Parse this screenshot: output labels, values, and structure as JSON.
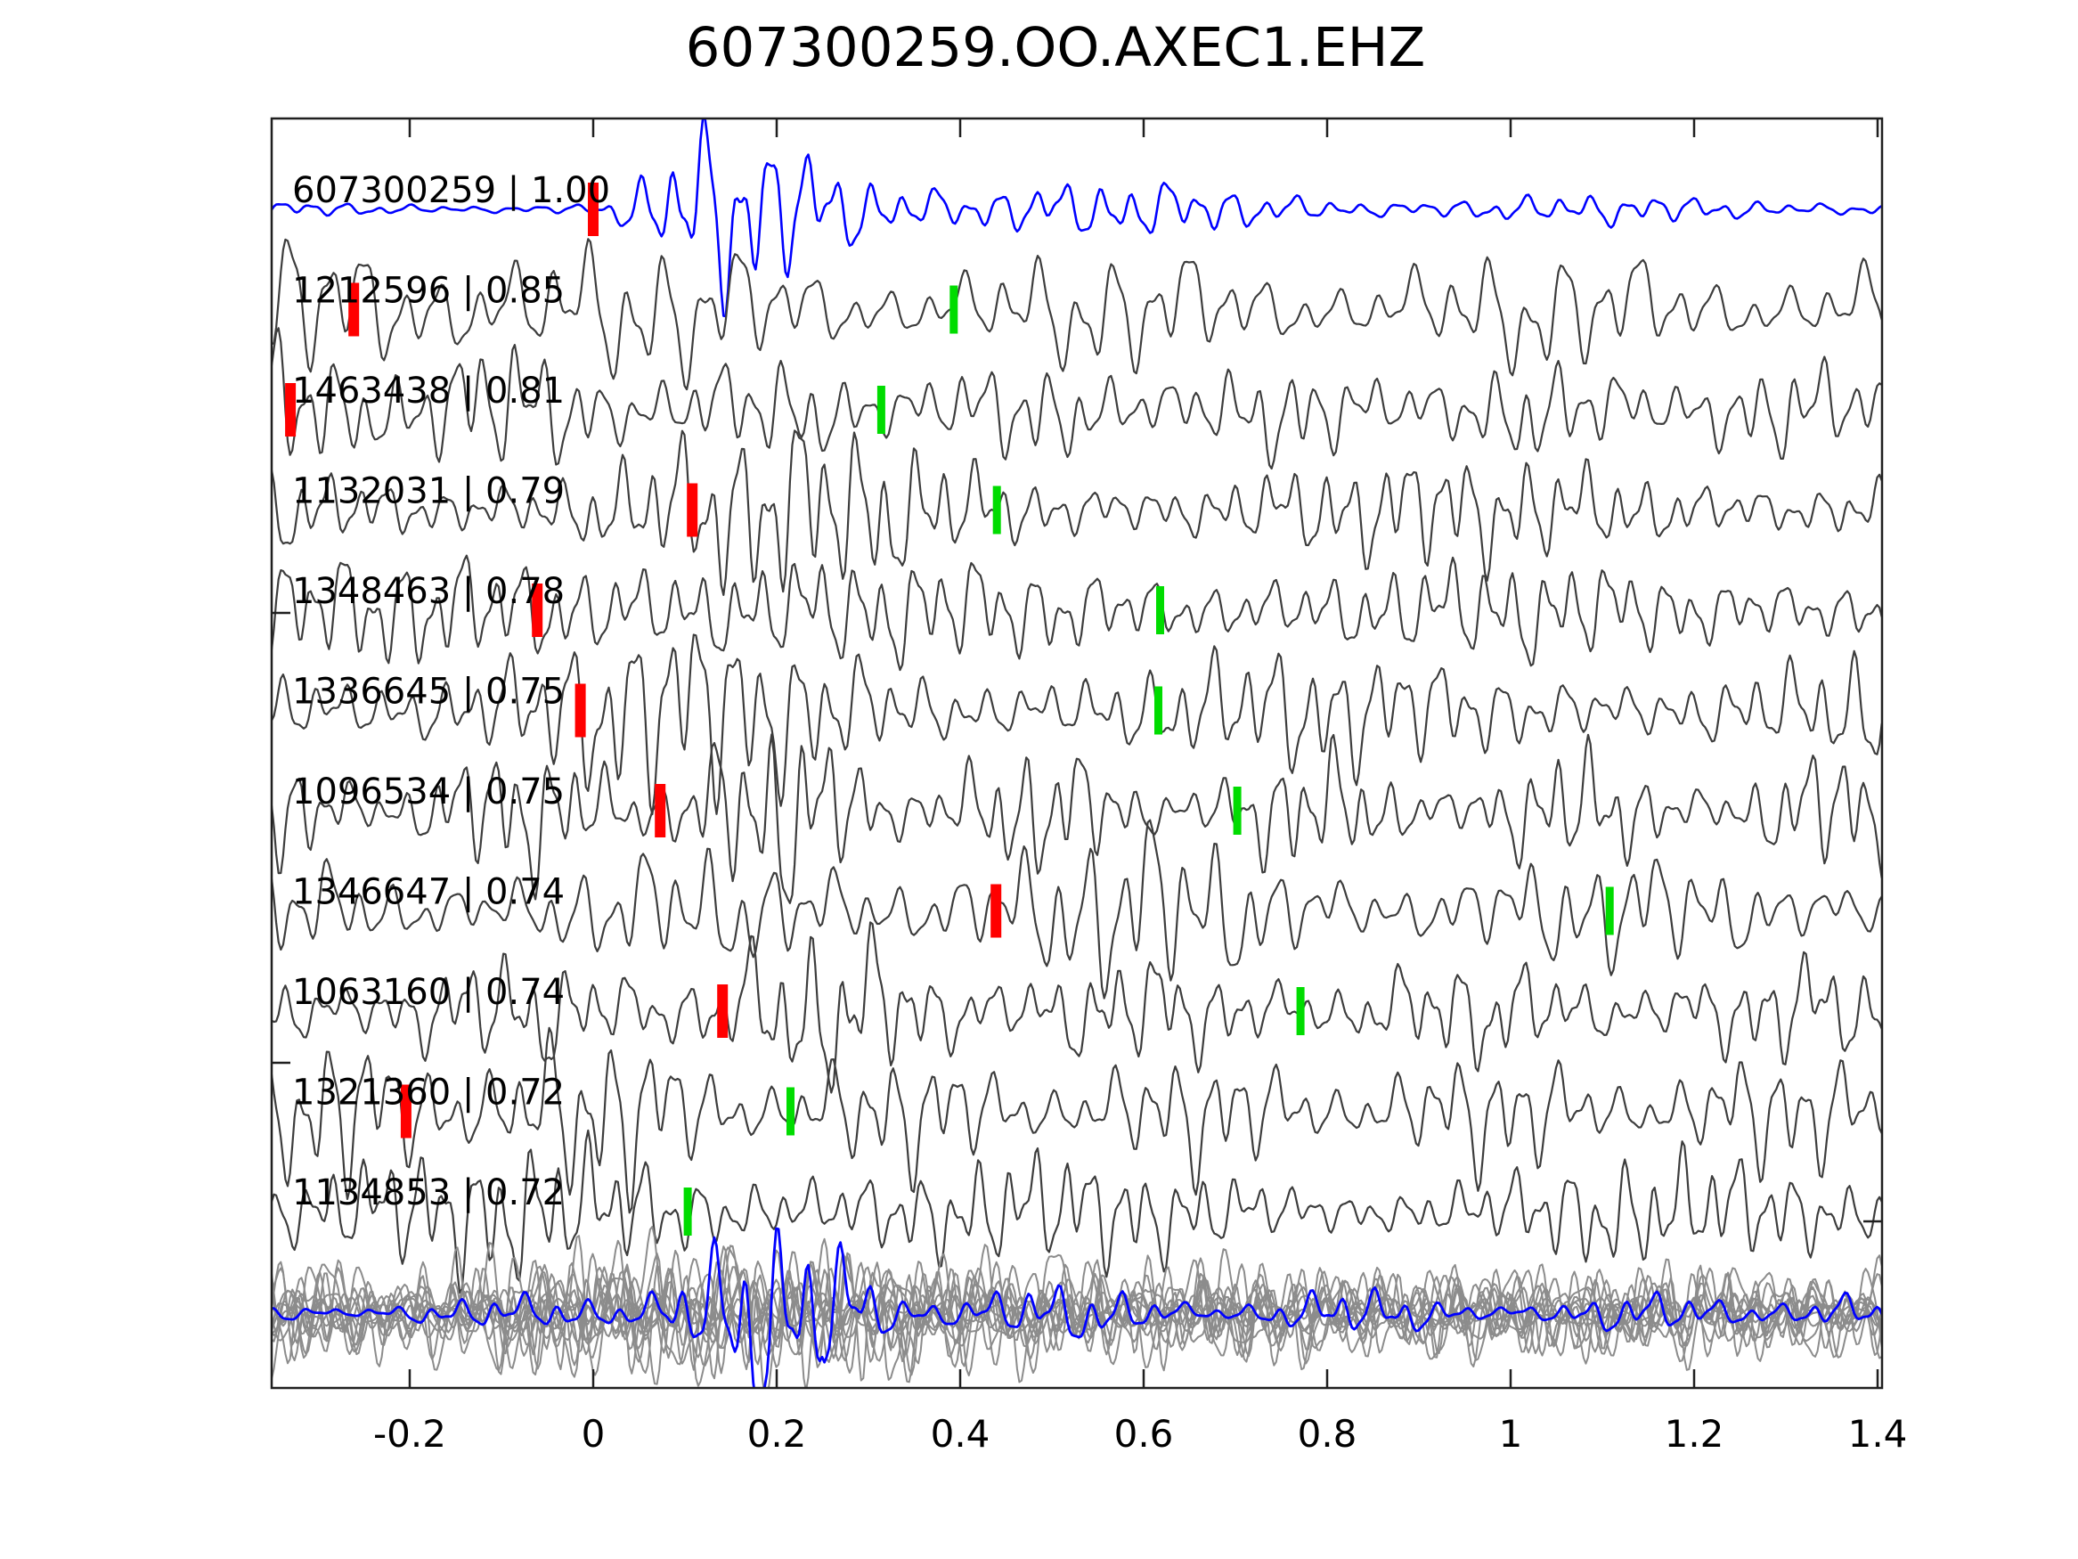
{
  "title": "607300259.OO.AXEC1.EHZ",
  "chart_data": {
    "type": "line",
    "title": "607300259.OO.AXEC1.EHZ",
    "xlabel": "",
    "ylabel": "",
    "grid": false,
    "legend": null,
    "x_axis": {
      "min": -0.35,
      "max": 1.405,
      "ticks": [
        -0.2,
        0,
        0.2,
        0.4,
        0.6,
        0.8,
        1,
        1.2,
        1.4
      ],
      "tick_labels": [
        "-0.2",
        "0",
        "0.2",
        "0.4",
        "0.6",
        "0.8",
        "1",
        "1.2",
        "1.4"
      ]
    },
    "traces": [
      {
        "label": "607300259 | 1.00",
        "id": "607300259",
        "correlation": 1.0,
        "role": "template",
        "color": "#0000ff",
        "picks": {
          "red": 0.0,
          "green": null
        }
      },
      {
        "label": "1212596 | 0.85",
        "id": "1212596",
        "correlation": 0.85,
        "role": "detection",
        "color": "#3d3d3d",
        "picks": {
          "red": -0.261,
          "green": 0.393
        }
      },
      {
        "label": "1463438 | 0.81",
        "id": "1463438",
        "correlation": 0.81,
        "role": "detection",
        "color": "#3d3d3d",
        "picks": {
          "red": -0.33,
          "green": 0.314
        }
      },
      {
        "label": "1132031 | 0.79",
        "id": "1132031",
        "correlation": 0.79,
        "role": "detection",
        "color": "#3d3d3d",
        "picks": {
          "red": 0.108,
          "green": 0.44
        }
      },
      {
        "label": "1348463 | 0.78",
        "id": "1348463",
        "correlation": 0.78,
        "role": "detection",
        "color": "#3d3d3d",
        "picks": {
          "red": -0.061,
          "green": 0.618
        }
      },
      {
        "label": "1336645 | 0.75",
        "id": "1336645",
        "correlation": 0.75,
        "role": "detection",
        "color": "#3d3d3d",
        "picks": {
          "red": -0.014,
          "green": 0.616
        }
      },
      {
        "label": "1096534 | 0.75",
        "id": "1096534",
        "correlation": 0.75,
        "role": "detection",
        "color": "#3d3d3d",
        "picks": {
          "red": 0.073,
          "green": 0.702
        }
      },
      {
        "label": "1346647 | 0.74",
        "id": "1346647",
        "correlation": 0.74,
        "role": "detection",
        "color": "#3d3d3d",
        "picks": {
          "red": 0.439,
          "green": 1.108
        }
      },
      {
        "label": "1063160 | 0.74",
        "id": "1063160",
        "correlation": 0.74,
        "role": "detection",
        "color": "#3d3d3d",
        "picks": {
          "red": 0.141,
          "green": 0.771
        }
      },
      {
        "label": "1321360 | 0.72",
        "id": "1321360",
        "correlation": 0.72,
        "role": "detection",
        "color": "#3d3d3d",
        "picks": {
          "red": -0.204,
          "green": 0.215
        }
      },
      {
        "label": "1134853 | 0.72",
        "id": "1134853",
        "correlation": 0.72,
        "role": "detection",
        "color": "#3d3d3d",
        "picks": {
          "red": null,
          "green": 0.103
        }
      }
    ],
    "overlay_panel": {
      "description": "all detection waveforms overlaid in gray with template/stack highlighted in blue",
      "gray_trace_count": 12,
      "gray_color": "#8c8c8c",
      "highlight_color": "#0000ff"
    }
  },
  "colors": {
    "background": "#ffffff",
    "frame": "#1f1f1f",
    "template_trace": "#0000ff",
    "detection_trace": "#3d3d3d",
    "template_pick": "#ff0000",
    "detection_pick": "#00dc00",
    "text": "#000000"
  }
}
